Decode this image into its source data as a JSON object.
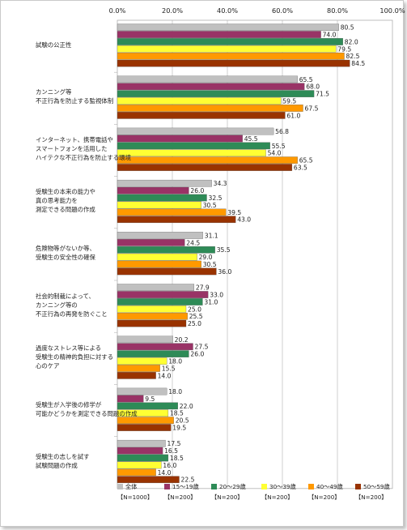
{
  "chart_data": {
    "type": "bar",
    "orientation": "horizontal",
    "xlim": [
      0,
      100
    ],
    "ticks": [
      "0.0%",
      "20.0%",
      "40.0%",
      "60.0%",
      "80.0%",
      "100.0%"
    ],
    "categories": [
      [
        "試験の公正性"
      ],
      [
        "カンニング等",
        "不正行為を防止する監視体制"
      ],
      [
        "インターネット、携帯電話や",
        "スマートフォンを活用した",
        "ハイテクな不正行為を防止する環境"
      ],
      [
        "受験生の本来の能力や",
        "真の思考能力を",
        "測定できる問題の作成"
      ],
      [
        "危険物等がないか等、",
        "受験生の安全性の確保"
      ],
      [
        "社会的制裁によって、",
        "カンニング等の",
        "不正行為の再発を防ぐこと"
      ],
      [
        "過度なストレス等による",
        "受験生の精神的負担に対する",
        "心のケア"
      ],
      [
        "受験生が入学後の修学が",
        "可能かどうかを測定できる問題の作成"
      ],
      [
        "受験生の志しを試す",
        "試験問題の作成"
      ]
    ],
    "series": [
      {
        "name": "全体",
        "n": "【N=1000】",
        "color": "#c0c0c0",
        "values": [
          80.5,
          65.5,
          56.8,
          34.3,
          31.1,
          27.9,
          20.2,
          18.0,
          17.5
        ]
      },
      {
        "name": "15～19歳",
        "n": "【N=200】",
        "color": "#993366",
        "values": [
          74.0,
          68.0,
          45.5,
          26.0,
          24.5,
          33.0,
          27.5,
          9.5,
          16.5
        ]
      },
      {
        "name": "20～29歳",
        "n": "【N=200】",
        "color": "#2e8b57",
        "values": [
          82.0,
          71.5,
          55.5,
          32.5,
          35.5,
          31.0,
          26.0,
          22.0,
          18.5
        ]
      },
      {
        "name": "30～39歳",
        "n": "【N=200】",
        "color": "#ffff33",
        "values": [
          79.5,
          59.5,
          54.0,
          30.5,
          29.0,
          25.0,
          18.0,
          18.5,
          16.0
        ]
      },
      {
        "name": "40～49歳",
        "n": "【N=200】",
        "color": "#ff9900",
        "values": [
          82.5,
          67.5,
          65.5,
          39.5,
          30.5,
          25.5,
          15.5,
          20.5,
          14.0
        ]
      },
      {
        "name": "50～59歳",
        "n": "【N=200】",
        "color": "#993300",
        "values": [
          84.5,
          61.0,
          63.5,
          43.0,
          36.0,
          25.0,
          14.0,
          19.5,
          22.5
        ]
      }
    ],
    "grid": "vertical",
    "legend": "bottom"
  }
}
